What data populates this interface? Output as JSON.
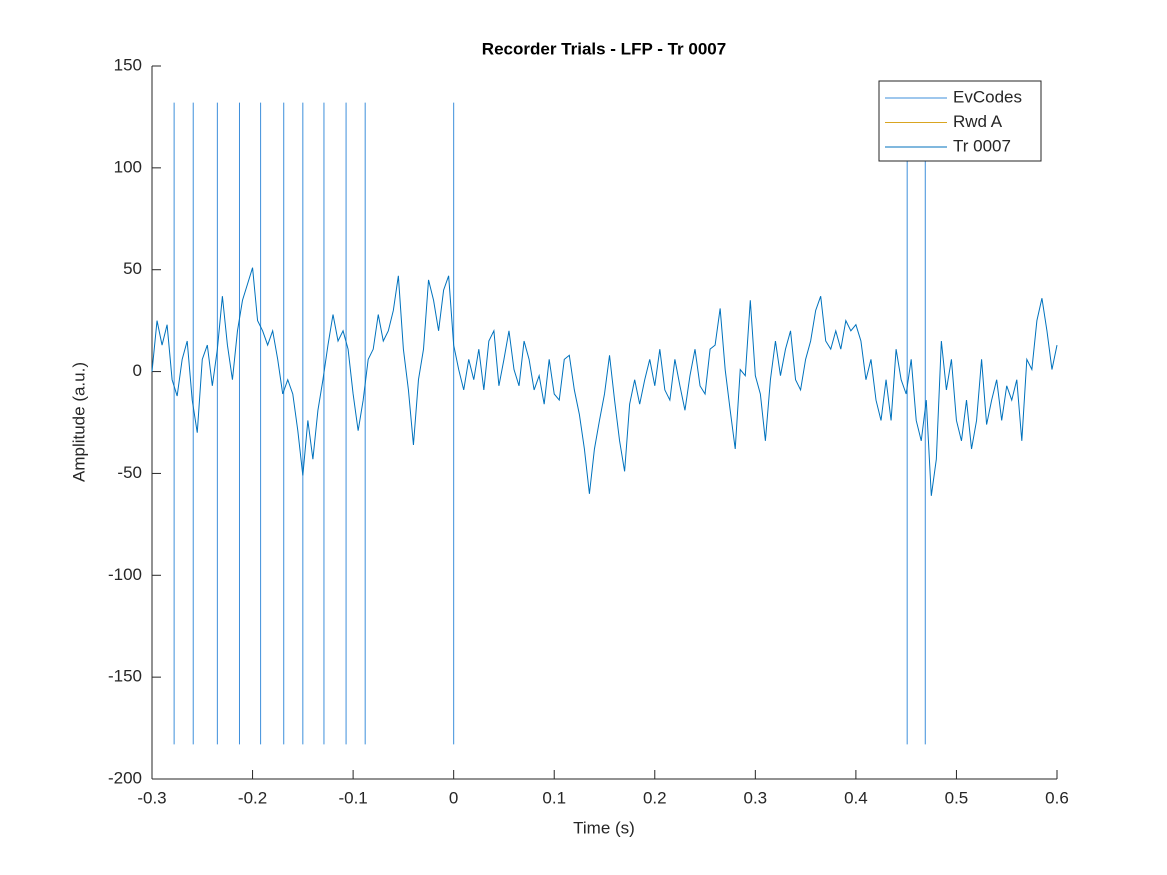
{
  "chart_data": {
    "type": "line",
    "title": "Recorder Trials - LFP - Tr 0007",
    "x_label": "Time (s)",
    "y_label": "Amplitude (a.u.)",
    "xlim": [
      -0.3,
      0.6
    ],
    "ylim": [
      -200,
      150
    ],
    "xticks": [
      -0.3,
      -0.2,
      -0.1,
      0,
      0.1,
      0.2,
      0.3,
      0.4,
      0.5,
      0.6
    ],
    "yticks": [
      -200,
      -150,
      -100,
      -50,
      0,
      50,
      100,
      150
    ],
    "legend": "northeast",
    "series": [
      {
        "name": "EvCodes",
        "color": "#3d8fdb",
        "x": [
          -0.278,
          -0.259,
          -0.235,
          -0.213,
          -0.192,
          -0.169,
          -0.15,
          -0.129,
          -0.107,
          -0.088,
          0,
          0.451,
          0.469
        ],
        "y_range": [
          -183,
          132
        ]
      },
      {
        "name": "Rwd A",
        "color": "#d9a521"
      },
      {
        "name": "Tr 0007",
        "color": "#0072bd",
        "x": [
          -0.3,
          -0.295,
          -0.29,
          -0.285,
          -0.28,
          -0.275,
          -0.27,
          -0.265,
          -0.26,
          -0.255,
          -0.25,
          -0.245,
          -0.24,
          -0.235,
          -0.23,
          -0.225,
          -0.22,
          -0.215,
          -0.21,
          -0.205,
          -0.2,
          -0.195,
          -0.19,
          -0.185,
          -0.18,
          -0.175,
          -0.17,
          -0.165,
          -0.16,
          -0.155,
          -0.15,
          -0.145,
          -0.14,
          -0.135,
          -0.13,
          -0.125,
          -0.12,
          -0.115,
          -0.11,
          -0.105,
          -0.1,
          -0.095,
          -0.09,
          -0.085,
          -0.08,
          -0.075,
          -0.07,
          -0.065,
          -0.06,
          -0.055,
          -0.05,
          -0.045,
          -0.04,
          -0.035,
          -0.03,
          -0.025,
          -0.02,
          -0.015,
          -0.01,
          -0.005,
          0,
          0.005,
          0.01,
          0.015,
          0.02,
          0.025,
          0.03,
          0.035,
          0.04,
          0.045,
          0.05,
          0.055,
          0.06,
          0.065,
          0.07,
          0.075,
          0.08,
          0.085,
          0.09,
          0.095,
          0.1,
          0.105,
          0.11,
          0.115,
          0.12,
          0.125,
          0.13,
          0.135,
          0.14,
          0.145,
          0.15,
          0.155,
          0.16,
          0.165,
          0.17,
          0.175,
          0.18,
          0.185,
          0.19,
          0.195,
          0.2,
          0.205,
          0.21,
          0.215,
          0.22,
          0.225,
          0.23,
          0.235,
          0.24,
          0.245,
          0.25,
          0.255,
          0.26,
          0.265,
          0.27,
          0.275,
          0.28,
          0.285,
          0.29,
          0.295,
          0.3,
          0.305,
          0.31,
          0.315,
          0.32,
          0.325,
          0.33,
          0.335,
          0.34,
          0.345,
          0.35,
          0.355,
          0.36,
          0.365,
          0.37,
          0.375,
          0.38,
          0.385,
          0.39,
          0.395,
          0.4,
          0.405,
          0.41,
          0.415,
          0.42,
          0.425,
          0.43,
          0.435,
          0.44,
          0.445,
          0.45,
          0.455,
          0.46,
          0.465,
          0.47,
          0.475,
          0.48,
          0.485,
          0.49,
          0.495,
          0.5,
          0.505,
          0.51,
          0.515,
          0.52,
          0.525,
          0.53,
          0.535,
          0.54,
          0.545,
          0.55,
          0.555,
          0.56,
          0.565,
          0.57,
          0.575,
          0.58,
          0.585,
          0.59,
          0.595,
          0.6
        ],
        "values": [
          0,
          25,
          13,
          23,
          -4,
          -12,
          6,
          15,
          -14,
          -30,
          6,
          13,
          -7,
          11,
          37,
          13,
          -4,
          20,
          35,
          43,
          51,
          25,
          20,
          13,
          20,
          6,
          -11,
          -4,
          -11,
          -29,
          -51,
          -24,
          -43,
          -19,
          -4,
          13,
          28,
          15,
          20,
          11,
          -11,
          -29,
          -14,
          6,
          11,
          28,
          15,
          20,
          30,
          47,
          11,
          -9,
          -36,
          -4,
          11,
          45,
          35,
          20,
          40,
          47,
          13,
          1,
          -9,
          6,
          -4,
          11,
          -9,
          15,
          20,
          -7,
          6,
          20,
          1,
          -7,
          15,
          6,
          -9,
          -2,
          -16,
          6,
          -11,
          -14,
          6,
          8,
          -9,
          -21,
          -38,
          -60,
          -38,
          -24,
          -11,
          8,
          -14,
          -34,
          -49,
          -16,
          -4,
          -16,
          -4,
          6,
          -7,
          11,
          -9,
          -14,
          6,
          -7,
          -19,
          -2,
          11,
          -7,
          -11,
          11,
          13,
          31,
          1,
          -19,
          -38,
          1,
          -2,
          35,
          -2,
          -11,
          -34,
          -4,
          15,
          -2,
          11,
          20,
          -4,
          -9,
          6,
          15,
          30,
          37,
          15,
          11,
          20,
          11,
          25,
          20,
          23,
          15,
          -4,
          6,
          -14,
          -24,
          -4,
          -24,
          11,
          -4,
          -11,
          6,
          -24,
          -34,
          -14,
          -61,
          -43,
          15,
          -9,
          6,
          -24,
          -34,
          -14,
          -38,
          -24,
          6,
          -26,
          -14,
          -4,
          -24,
          -7,
          -14,
          -4,
          -34,
          6,
          1,
          25,
          36,
          20,
          1,
          13
        ]
      }
    ]
  }
}
